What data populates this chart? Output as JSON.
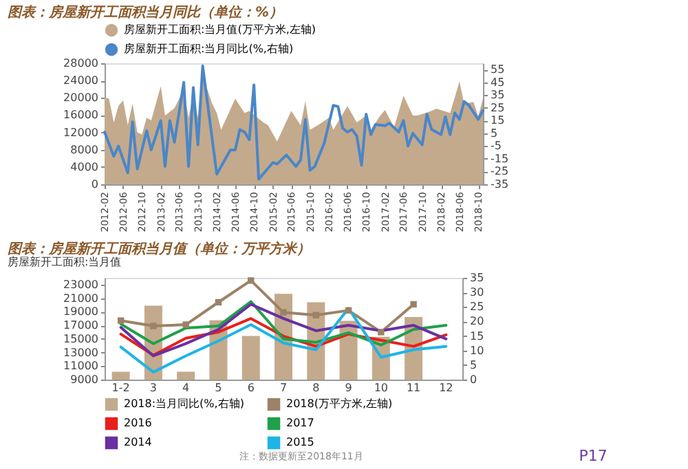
{
  "chart_data": [
    {
      "type": "area",
      "title": "图表：房屋新开工面积当月同比（单位：%）",
      "legend": "top",
      "grid": false,
      "xlim": [
        "2012-02",
        "2018-11"
      ],
      "xticks": [
        "2012-02",
        "2012-06",
        "2012-10",
        "2013-02",
        "2013-06",
        "2013-10",
        "2014-02",
        "2014-06",
        "2014-10",
        "2015-02",
        "2015-06",
        "2015-10",
        "2016-02",
        "2016-06",
        "2016-10",
        "2017-02",
        "2017-06",
        "2017-10",
        "2018-02",
        "2018-06",
        "2018-10"
      ],
      "ylim": [
        0,
        28000
      ],
      "yticks": [
        0,
        4000,
        8000,
        12000,
        16000,
        20000,
        24000,
        28000
      ],
      "y2lim": [
        -35,
        60
      ],
      "y2ticks": [
        -35,
        -25,
        -15,
        -5,
        5,
        15,
        25,
        35,
        45,
        55
      ],
      "series": [
        {
          "name": "房屋新开工面积:当月值(万平方米,左轴)",
          "color": "#c4aa8c",
          "x": [
            "2012-02",
            "2012-03",
            "2012-04",
            "2012-05",
            "2012-06",
            "2012-07",
            "2012-08",
            "2012-09",
            "2012-10",
            "2012-11",
            "2012-12",
            "2013-02",
            "2013-03",
            "2013-05",
            "2013-07",
            "2013-08",
            "2013-09",
            "2013-10",
            "2013-11",
            "2014-01",
            "2014-02",
            "2014-03",
            "2014-06",
            "2014-08",
            "2014-09",
            "2014-12",
            "2015-01",
            "2015-03",
            "2015-06",
            "2015-08",
            "2015-09",
            "2015-10",
            "2015-12",
            "2016-02",
            "2016-03",
            "2016-06",
            "2016-08",
            "2016-10",
            "2016-11",
            "2017-01",
            "2017-02",
            "2017-04",
            "2017-06",
            "2017-08",
            "2017-09",
            "2017-12",
            "2018-01",
            "2018-04",
            "2018-06",
            "2018-07",
            "2018-09",
            "2018-10",
            "2018-11"
          ],
          "values": [
            20100,
            19800,
            14300,
            18100,
            19400,
            13700,
            18700,
            12100,
            11500,
            15400,
            14800,
            22700,
            15900,
            17600,
            22000,
            15400,
            20900,
            15400,
            25300,
            18700,
            16500,
            12600,
            19800,
            16500,
            17000,
            14300,
            13700,
            9900,
            17000,
            13700,
            19200,
            12600,
            13900,
            15400,
            12600,
            18100,
            14300,
            15900,
            12600,
            15900,
            17200,
            13200,
            20500,
            15900,
            15900,
            17000,
            17500,
            16500,
            23800,
            18700,
            19000,
            15700,
            19800
          ]
        },
        {
          "name": "房屋新开工面积:当月同比(%,右轴)",
          "type": "line",
          "axis": "y2",
          "color": "#4a86c8",
          "x": [
            "2012-02",
            "2012-04",
            "2012-05",
            "2012-07",
            "2012-08",
            "2012-09",
            "2012-11",
            "2012-12",
            "2013-02",
            "2013-03",
            "2013-04",
            "2013-05",
            "2013-07",
            "2013-08",
            "2013-09",
            "2013-10",
            "2013-11",
            "2013-12",
            "2014-02",
            "2014-05",
            "2014-06",
            "2014-07",
            "2014-08",
            "2014-09",
            "2014-10",
            "2014-11",
            "2015-02",
            "2015-03",
            "2015-05",
            "2015-07",
            "2015-08",
            "2015-09",
            "2015-10",
            "2015-11",
            "2016-01",
            "2016-03",
            "2016-04",
            "2016-05",
            "2016-06",
            "2016-07",
            "2016-08",
            "2016-09",
            "2016-10",
            "2016-11",
            "2016-12",
            "2017-02",
            "2017-03",
            "2017-05",
            "2017-06",
            "2017-07",
            "2017-08",
            "2017-10",
            "2017-11",
            "2017-12",
            "2018-02",
            "2018-03",
            "2018-04",
            "2018-05",
            "2018-06",
            "2018-07",
            "2018-08",
            "2018-10",
            "2018-11"
          ],
          "values": [
            6,
            -13,
            -5,
            -26,
            14,
            -23,
            7,
            -8,
            15,
            -21,
            15,
            -2,
            45,
            -21,
            41,
            -4,
            58,
            30,
            -27,
            -8,
            -8,
            8,
            6,
            0,
            43,
            -31,
            -18,
            -19,
            -12,
            -21,
            -16,
            16,
            -24,
            -21,
            -3,
            27,
            26,
            9,
            6,
            8,
            3,
            -20,
            20,
            4,
            12,
            11,
            13,
            6,
            15,
            -5,
            5,
            -4,
            20,
            8,
            4,
            18,
            4,
            21,
            16,
            30,
            27,
            16,
            23
          ]
        }
      ]
    },
    {
      "type": "line",
      "title": "图表：房屋新开工面积当月值（单位：万平方米）",
      "subtitle": "房屋新开工面积:当月值",
      "legend": "bottom",
      "grid": false,
      "categories": [
        "1-2",
        "3",
        "4",
        "5",
        "6",
        "7",
        "8",
        "9",
        "10",
        "11",
        "12"
      ],
      "ylim": [
        9000,
        24000
      ],
      "yticks": [
        9000,
        11000,
        13000,
        15000,
        17000,
        19000,
        21000,
        23000
      ],
      "y2lim": [
        0,
        35
      ],
      "y2ticks": [
        0,
        5,
        10,
        15,
        20,
        25,
        30,
        35
      ],
      "annotations": [
        "注：数据更新至2018年11月",
        "P17"
      ],
      "series": [
        {
          "name": "2018:当月同比(%,右轴)",
          "type": "bar",
          "axis": "y2",
          "color": "#c4aa8c",
          "values": [
            2.7,
            25.4,
            2.7,
            20.4,
            15,
            29.5,
            26.6,
            20.2,
            14.7,
            21.5,
            null
          ]
        },
        {
          "name": "2018(万平方米,左轴)",
          "marker": "square",
          "color": "#9c8266",
          "values": [
            17700,
            16900,
            17100,
            20400,
            23600,
            18900,
            18500,
            19200,
            16000,
            20100,
            null
          ]
        },
        {
          "name": "2016",
          "color": "#e8201c",
          "values": [
            15700,
            12600,
            15100,
            16000,
            18000,
            15400,
            13900,
            15700,
            14800,
            13900,
            15600
          ]
        },
        {
          "name": "2017",
          "color": "#1fa04a",
          "values": [
            17200,
            14300,
            16600,
            16900,
            20500,
            15000,
            14500,
            15900,
            14100,
            16400,
            17000
          ]
        },
        {
          "name": "2014",
          "color": "#6a2fa0",
          "values": [
            16700,
            12500,
            14300,
            16400,
            20100,
            18000,
            16200,
            17000,
            16200,
            17000,
            15000
          ]
        },
        {
          "name": "2015",
          "color": "#1eb4e6",
          "values": [
            13800,
            10100,
            12500,
            14700,
            17100,
            14400,
            13400,
            19500,
            12300,
            13400,
            13900
          ]
        }
      ]
    }
  ]
}
